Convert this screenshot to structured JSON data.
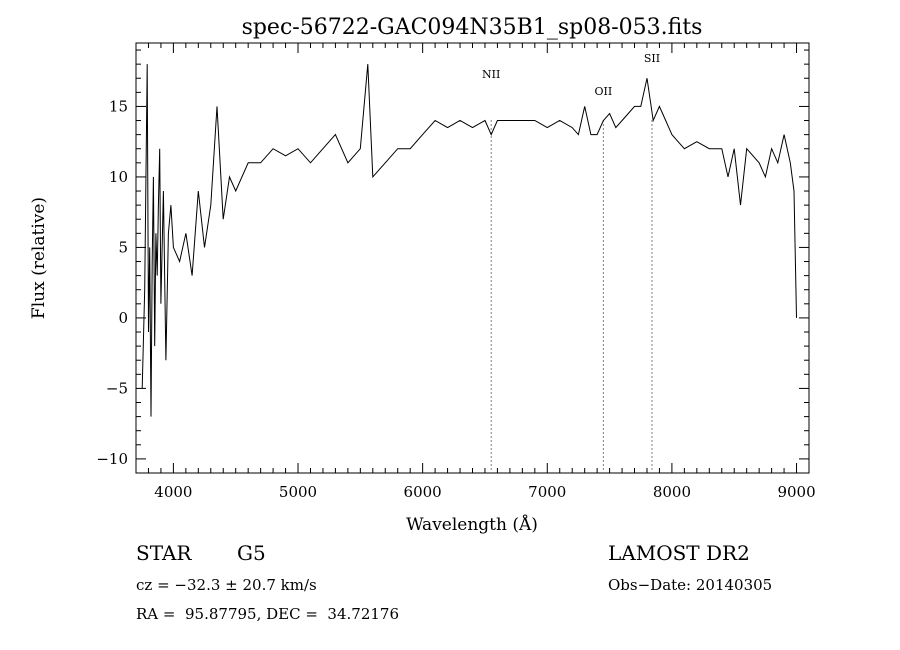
{
  "chart_data": {
    "type": "line",
    "title": "spec-56722-GAC094N35B1_sp08-053.fits",
    "xlabel": "Wavelength (Å)",
    "ylabel": "Flux (relative)",
    "xlim": [
      3700,
      9100
    ],
    "ylim": [
      -11,
      19.5
    ],
    "x_ticks": [
      4000,
      5000,
      6000,
      7000,
      8000,
      9000
    ],
    "y_ticks": [
      -10,
      -5,
      0,
      5,
      10,
      15
    ],
    "grid": false,
    "series": [
      {
        "x": [
          3750,
          3770,
          3790,
          3800,
          3810,
          3820,
          3830,
          3840,
          3850,
          3860,
          3870,
          3880,
          3890,
          3900,
          3920,
          3940,
          3960,
          3980,
          4000,
          4050,
          4100,
          4150,
          4200,
          4250,
          4300,
          4350,
          4400,
          4450,
          4500,
          4600,
          4700,
          4800,
          4900,
          5000,
          5100,
          5200,
          5300,
          5400,
          5500,
          5560,
          5600,
          5700,
          5800,
          5900,
          6000,
          6100,
          6200,
          6300,
          6400,
          6500,
          6550,
          6600,
          6700,
          6800,
          6900,
          7000,
          7100,
          7200,
          7250,
          7300,
          7350,
          7400,
          7450,
          7500,
          7550,
          7600,
          7650,
          7700,
          7750,
          7800,
          7850,
          7900,
          7950,
          8000,
          8050,
          8100,
          8200,
          8300,
          8400,
          8450,
          8500,
          8550,
          8600,
          8700,
          8750,
          8800,
          8850,
          8900,
          8950,
          8980,
          9000
        ],
        "y": [
          -5,
          2,
          18,
          -1,
          5,
          -7,
          4,
          10,
          -2,
          6,
          3,
          8,
          12,
          1,
          9,
          -3,
          6,
          8,
          5,
          4,
          6,
          3,
          9,
          5,
          8,
          15,
          7,
          10,
          9,
          11,
          11,
          12,
          11.5,
          12,
          11,
          12,
          13,
          11,
          12,
          18,
          10,
          11,
          12,
          12,
          13,
          14,
          13.5,
          14,
          13.5,
          14,
          13,
          14,
          14,
          14,
          14,
          13.5,
          14,
          13.5,
          13,
          15,
          13,
          13,
          14,
          14.5,
          13.5,
          14,
          14.5,
          15,
          15,
          17,
          14,
          15,
          14,
          13,
          12.5,
          12,
          12.5,
          12,
          12,
          10,
          12,
          8,
          12,
          11,
          10,
          12,
          11,
          13,
          11,
          9,
          0
        ]
      }
    ],
    "lines": [
      {
        "label": "NII",
        "x": 6550
      },
      {
        "label": "OII",
        "x": 7450
      },
      {
        "label": "SII",
        "x": 7840
      }
    ]
  },
  "info": {
    "object_type": "STAR",
    "subclass": "G5",
    "survey": "LAMOST DR2",
    "cz": "cz = −32.3 ± 20.7 km/s",
    "obs_date": "Obs−Date: 20140305",
    "coords": "RA =  95.87795, DEC =  34.72176"
  }
}
